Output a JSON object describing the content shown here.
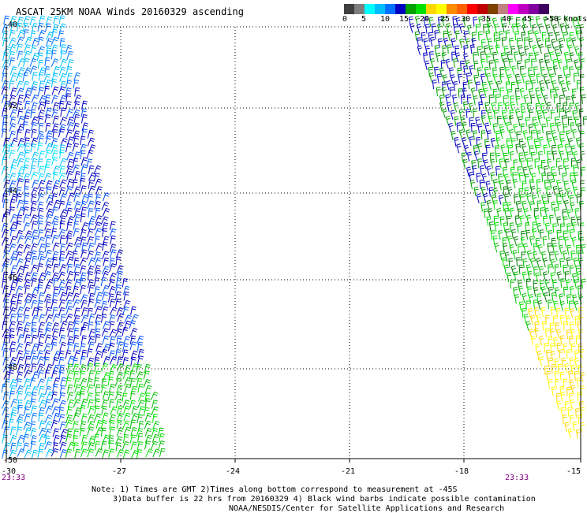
{
  "title": "ASCAT 25KM NOAA Winds 20160329 ascending",
  "legend": {
    "colors": [
      "#404040",
      "#7f7f7f",
      "#00ffff",
      "#00bfff",
      "#0070ff",
      "#0000c0",
      "#00a000",
      "#00e000",
      "#ffd700",
      "#ffff00",
      "#ff8c00",
      "#ff6000",
      "#ff0000",
      "#c00000",
      "#804000",
      "#c08080",
      "#ff00ff",
      "#c000c0",
      "#8000a0",
      "#400060"
    ],
    "labels": [
      "0",
      "5",
      "10",
      "15",
      "20",
      "25",
      "30",
      "35",
      "40",
      "45",
      ">50 knots"
    ]
  },
  "axes": {
    "x_labels": [
      "-30",
      "-27",
      "-24",
      "-21",
      "-18",
      "-15"
    ],
    "y_labels": [
      "-40",
      "-42",
      "-44",
      "-46",
      "-48",
      "-50"
    ]
  },
  "times": {
    "left": "23:33",
    "right": "23:33"
  },
  "notes": {
    "line1": "Note: 1) Times are GMT 2)Times along bottom correspond to measurement at -45S",
    "line2": "3)Data buffer is 22 hrs from 20160329 4) Black wind barbs indicate possible contamination",
    "line3": "NOAA/NESDIS/Center for Satellite Applications and Research"
  }
}
